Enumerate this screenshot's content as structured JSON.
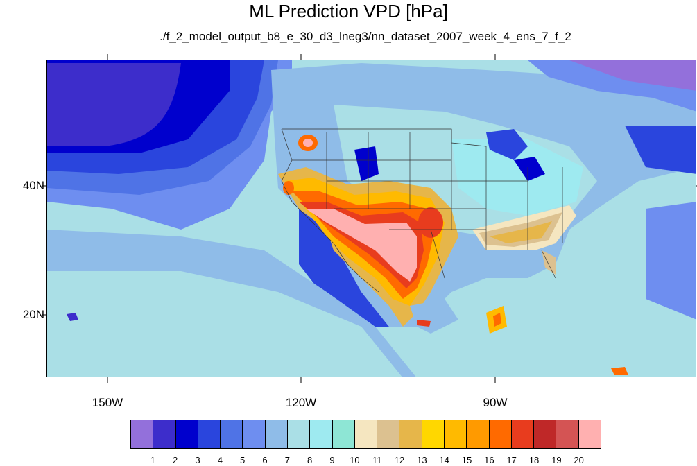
{
  "title": "ML Prediction VPD [hPa]",
  "subtitle": "./f_2_model_output_b8_e_30_d3_lneg3/nn_dataset_2007_week_4_ens_7_f_2",
  "map": {
    "projection": "cylindrical-equidistant",
    "lon_range": [
      -160,
      -60
    ],
    "lat_range": [
      10,
      59
    ],
    "y_ticks": [
      {
        "value": 40,
        "label": "40N"
      },
      {
        "value": 20,
        "label": "20N"
      }
    ],
    "x_ticks": [
      {
        "value": -150,
        "label": "150W"
      },
      {
        "value": -120,
        "label": "120W"
      },
      {
        "value": -90,
        "label": "90W"
      }
    ],
    "field": "VPD",
    "units": "hPa"
  },
  "colorbar": {
    "boxes": [
      "#9370db",
      "#3d2dcb",
      "#0000cd",
      "#2a45dd",
      "#4f73e6",
      "#6e8ef0",
      "#8fbce8",
      "#aadfe6",
      "#9eeaf0",
      "#8ee6d5",
      "#f5e6c0",
      "#dcc190",
      "#e6b64a",
      "#ffd700",
      "#ffba00",
      "#ff9a00",
      "#ff6a00",
      "#e83c1e",
      "#bf2828",
      "#d45454",
      "#ffb0b0"
    ],
    "labels": [
      "1",
      "2",
      "3",
      "4",
      "5",
      "6",
      "7",
      "8",
      "9",
      "10",
      "11",
      "12",
      "13",
      "14",
      "15",
      "16",
      "17",
      "18",
      "19",
      "20"
    ]
  }
}
